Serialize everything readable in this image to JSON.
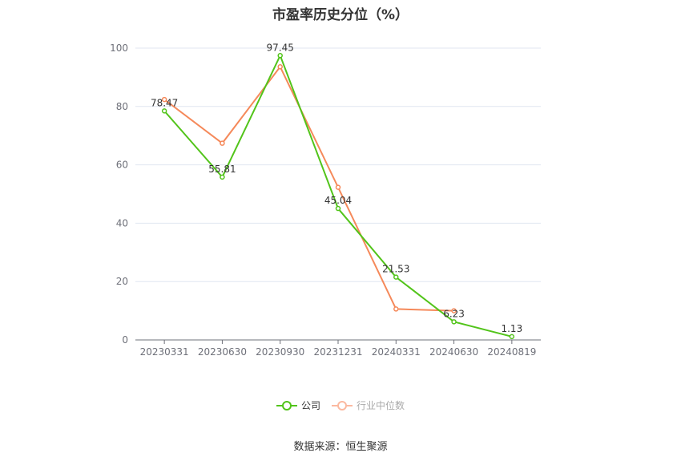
{
  "chart_data": {
    "type": "line",
    "title": "市盈率历史分位（%）",
    "categories": [
      "20230331",
      "20230630",
      "20230930",
      "20231231",
      "20240331",
      "20240630",
      "20240819"
    ],
    "ylim": [
      0,
      100
    ],
    "yticks": [
      0,
      20,
      40,
      60,
      80,
      100
    ],
    "grid": true,
    "legend_position": "bottom",
    "series": [
      {
        "name": "公司",
        "color": "#52c41a",
        "values": [
          78.47,
          55.81,
          97.45,
          45.04,
          21.53,
          6.23,
          1.13
        ],
        "labels": [
          "78.47",
          "55.81",
          "97.45",
          "45.04",
          "21.53",
          "6.23",
          "1.13"
        ]
      },
      {
        "name": "行业中位数",
        "color": "#f5895a",
        "values": [
          82.4,
          67.4,
          93.6,
          52.3,
          10.6,
          10.0,
          null
        ]
      }
    ]
  },
  "source": "数据来源：恒生聚源"
}
